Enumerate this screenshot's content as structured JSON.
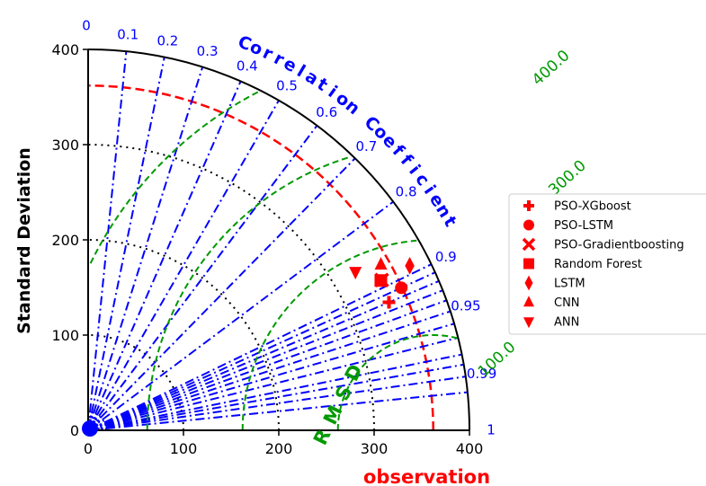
{
  "chart_data": {
    "type": "taylor",
    "ylabel": "Standard Deviation",
    "xlabel": "observation",
    "corr_title": "Correlation Coefficient",
    "rms_title": "RMSD",
    "std_max": 400,
    "std_ticks": [
      0,
      100,
      200,
      300,
      400
    ],
    "std_grid_circles": [
      200,
      300
    ],
    "reference_std": 362,
    "correlation_ticks": [
      "0",
      "0.1",
      "0.2",
      "0.3",
      "0.4",
      "0.5",
      "0.6",
      "0.7",
      "0.8",
      "0.9",
      "0.95",
      "0.99",
      "1"
    ],
    "correlation_values": [
      0,
      0.1,
      0.2,
      0.3,
      0.4,
      0.5,
      0.6,
      0.7,
      0.8,
      0.9,
      0.95,
      0.99,
      1
    ],
    "rmsd_contours": [
      100,
      200,
      300,
      400
    ],
    "rmsd_labels": [
      "100.0",
      "200.0",
      "300.0",
      "400.0"
    ],
    "series": [
      {
        "name": "PSO-XGboost",
        "marker": "plus",
        "std": 343,
        "corr": 0.92
      },
      {
        "name": "PSO-LSTM",
        "marker": "circle",
        "std": 361,
        "corr": 0.91
      },
      {
        "name": "PSO-Gradientboosting",
        "marker": "x",
        "std": 346,
        "corr": 0.89
      },
      {
        "name": "Random Forest",
        "marker": "square",
        "std": 345,
        "corr": 0.89
      },
      {
        "name": "LSTM",
        "marker": "diamond",
        "std": 379,
        "corr": 0.89
      },
      {
        "name": "CNN",
        "marker": "triangle-up",
        "std": 353,
        "corr": 0.87
      },
      {
        "name": "ANN",
        "marker": "triangle-down",
        "std": 326,
        "corr": 0.86
      }
    ],
    "colors": {
      "axis": "#000000",
      "correlation": "#0000ff",
      "rmsd": "#009900",
      "reference": "#ff0000",
      "grid": "#000000",
      "markers": "#ff0000"
    }
  }
}
